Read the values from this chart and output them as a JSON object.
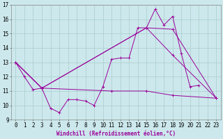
{
  "xlabel": "Windchill (Refroidissement éolien,°C)",
  "xlim": [
    -0.5,
    23.5
  ],
  "ylim": [
    9,
    17
  ],
  "yticks": [
    9,
    10,
    11,
    12,
    13,
    14,
    15,
    16,
    17
  ],
  "xticks": [
    0,
    1,
    2,
    3,
    4,
    5,
    6,
    7,
    8,
    9,
    10,
    11,
    12,
    13,
    14,
    15,
    16,
    17,
    18,
    19,
    20,
    21,
    22,
    23
  ],
  "background_color": "#cce8ec",
  "line_color": "#990099",
  "grid_color": "#aacccc",
  "line1_y": [
    13.0,
    12.0,
    11.1,
    11.2,
    9.8,
    9.5,
    10.4,
    10.4,
    10.3,
    10.0,
    11.3,
    13.2,
    13.3,
    13.3,
    15.4,
    15.4,
    16.7,
    15.6,
    16.2,
    13.6,
    11.3,
    11.4,
    null,
    null
  ],
  "line2": [
    [
      0,
      13.0
    ],
    [
      3,
      11.2
    ],
    [
      15,
      15.4
    ],
    [
      18,
      15.3
    ],
    [
      23,
      10.5
    ]
  ],
  "line3": [
    [
      0,
      13.0
    ],
    [
      3,
      11.2
    ],
    [
      15,
      15.4
    ],
    [
      18,
      13.5
    ],
    [
      23,
      10.5
    ]
  ],
  "line4": [
    [
      0,
      13.0
    ],
    [
      3,
      11.2
    ],
    [
      11,
      11.0
    ],
    [
      15,
      11.0
    ],
    [
      18,
      10.7
    ],
    [
      23,
      10.5
    ]
  ],
  "xlabel_fontsize": 5.5,
  "tick_fontsize": 5.5
}
